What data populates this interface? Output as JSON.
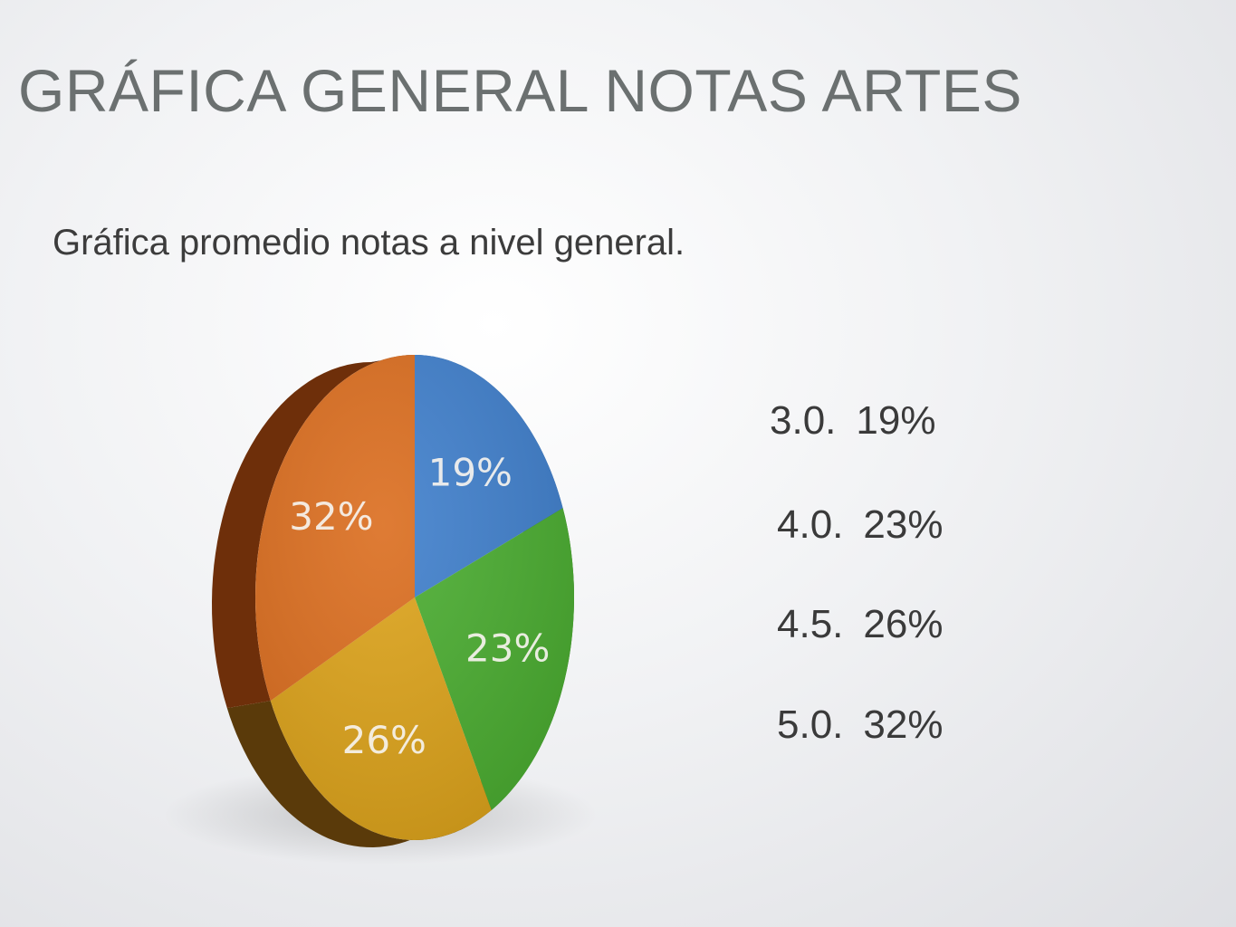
{
  "slide": {
    "title": "GRÁFICA GENERAL NOTAS ARTES",
    "subtitle": "Gráfica  promedio notas a nivel general."
  },
  "legend": {
    "rows": [
      {
        "grade": "3.0.",
        "percent": "19%"
      },
      {
        "grade": "4.0.",
        "percent": "23%"
      },
      {
        "grade": "4.5.",
        "percent": "26%"
      },
      {
        "grade": "5.0.",
        "percent": "32%"
      }
    ]
  },
  "chart_data": {
    "type": "pie",
    "title": "",
    "categories": [
      "3.0.",
      "4.0.",
      "4.5.",
      "5.0."
    ],
    "values": [
      19,
      23,
      26,
      32
    ],
    "labels": [
      "19%",
      "23%",
      "26%",
      "32%"
    ],
    "colors": [
      "#3f7fcc",
      "#4aad30",
      "#dda31a",
      "#db6d1e"
    ],
    "edge_colors": [
      "#2c5a90",
      "#326f22",
      "#5a3a0a",
      "#6e2f0a"
    ],
    "style": "3d-tilted"
  }
}
